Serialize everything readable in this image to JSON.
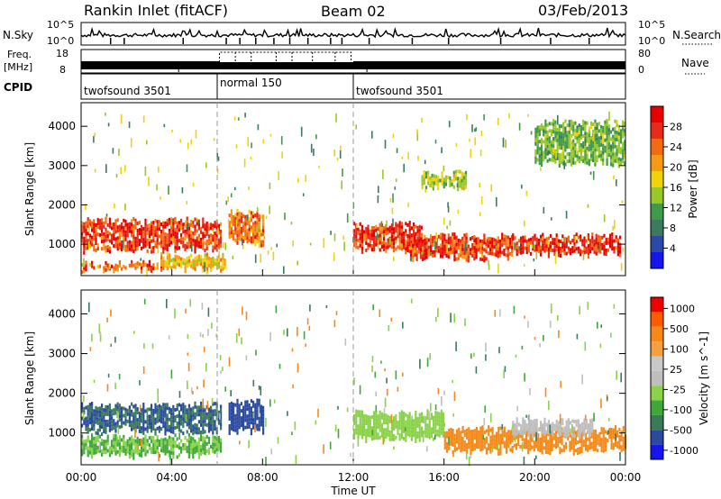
{
  "header": {
    "station": "Rankin Inlet (fitACF)",
    "beam": "Beam 02",
    "date": "03/Feb/2013"
  },
  "nsky_panel": {
    "left_label": "N.Sky",
    "right_label": "N.Search",
    "left_ticks": [
      "10^5",
      "10^0"
    ],
    "right_ticks": [
      "10^5",
      "10^0"
    ]
  },
  "freq_panel": {
    "left_label_1": "Freq.",
    "left_label_2": "[MHz]",
    "right_label": "Nave",
    "left_ticks": [
      "18",
      "8"
    ],
    "right_ticks": [
      "80",
      "0"
    ]
  },
  "cpid_panel": {
    "label": "CPID",
    "modes": [
      {
        "name": "twofsound 3501",
        "start": 0,
        "end": 6
      },
      {
        "name": "normal 150",
        "start": 6,
        "end": 12
      },
      {
        "name": "twofsound 3501",
        "start": 12,
        "end": 24
      }
    ]
  },
  "colors": {
    "power": [
      "#1515ee",
      "#2b4aa8",
      "#3b7a5e",
      "#3f9a4a",
      "#98c828",
      "#f0d20a",
      "#f59a12",
      "#f46a10",
      "#e82a1a",
      "#e80000"
    ],
    "velocity": [
      "#ee0000",
      "#ff5a00",
      "#f58a1a",
      "#f5a040",
      "#c8c8c8",
      "#bfbfbf",
      "#8ad24a",
      "#3fa83a",
      "#3a7a5a",
      "#2a4aa0",
      "#1515ee"
    ]
  },
  "chart_data": [
    {
      "type": "heatmap",
      "title": "Power",
      "xlabel": "",
      "ylabel": "Slant Range [km]",
      "xlim": [
        0,
        24
      ],
      "ylim": [
        200,
        4600
      ],
      "x_ticks": [
        "00:00",
        "04:00",
        "08:00",
        "12:00",
        "16:00",
        "20:00",
        "00:00"
      ],
      "y_ticks": [
        1000,
        2000,
        3000,
        4000
      ],
      "colorbar": {
        "label": "Power [dB]",
        "ticks": [
          "4",
          "8",
          "12",
          "16",
          "20",
          "24",
          "28"
        ],
        "range": [
          0,
          30
        ]
      },
      "regions": [
        {
          "x": [
            0,
            6.2
          ],
          "y": [
            800,
            1700
          ],
          "value": 25
        },
        {
          "x": [
            0,
            3.8
          ],
          "y": [
            300,
            600
          ],
          "value": 24
        },
        {
          "x": [
            3.5,
            6.3
          ],
          "y": [
            300,
            800
          ],
          "value": 18
        },
        {
          "x": [
            6.5,
            8.0
          ],
          "y": [
            1000,
            1900
          ],
          "value": 22
        },
        {
          "x": [
            12.0,
            15.0
          ],
          "y": [
            800,
            1600
          ],
          "value": 26
        },
        {
          "x": [
            14.5,
            19.0
          ],
          "y": [
            600,
            1300
          ],
          "value": 25
        },
        {
          "x": [
            19.0,
            23.8
          ],
          "y": [
            700,
            1300
          ],
          "value": 27
        },
        {
          "x": [
            15.0,
            17.0
          ],
          "y": [
            2400,
            2900
          ],
          "value": 14
        },
        {
          "x": [
            20.0,
            24.0
          ],
          "y": [
            3000,
            4200
          ],
          "value": 12
        }
      ]
    },
    {
      "type": "heatmap",
      "title": "Velocity",
      "xlabel": "Time UT",
      "ylabel": "Slant Range [km]",
      "xlim": [
        0,
        24
      ],
      "ylim": [
        200,
        4600
      ],
      "x_ticks": [
        "00:00",
        "04:00",
        "08:00",
        "12:00",
        "16:00",
        "20:00",
        "00:00"
      ],
      "y_ticks": [
        1000,
        2000,
        3000,
        4000
      ],
      "colorbar": {
        "label": "Velocity [m s^-1]",
        "ticks": [
          "1000",
          "500",
          "100",
          "25",
          "-25",
          "-100",
          "-500",
          "-1000"
        ]
      },
      "regions": [
        {
          "x": [
            0,
            6.2
          ],
          "y": [
            1000,
            1800
          ],
          "value": 500
        },
        {
          "x": [
            0,
            6.2
          ],
          "y": [
            400,
            1000
          ],
          "value": 100
        },
        {
          "x": [
            6.5,
            8.0
          ],
          "y": [
            1000,
            1900
          ],
          "value": 800
        },
        {
          "x": [
            12.0,
            16.0
          ],
          "y": [
            800,
            1600
          ],
          "value": 50
        },
        {
          "x": [
            16.0,
            24.0
          ],
          "y": [
            500,
            1200
          ],
          "value": -200
        },
        {
          "x": [
            19.0,
            22.5
          ],
          "y": [
            900,
            1400
          ],
          "value": 20
        }
      ]
    }
  ]
}
